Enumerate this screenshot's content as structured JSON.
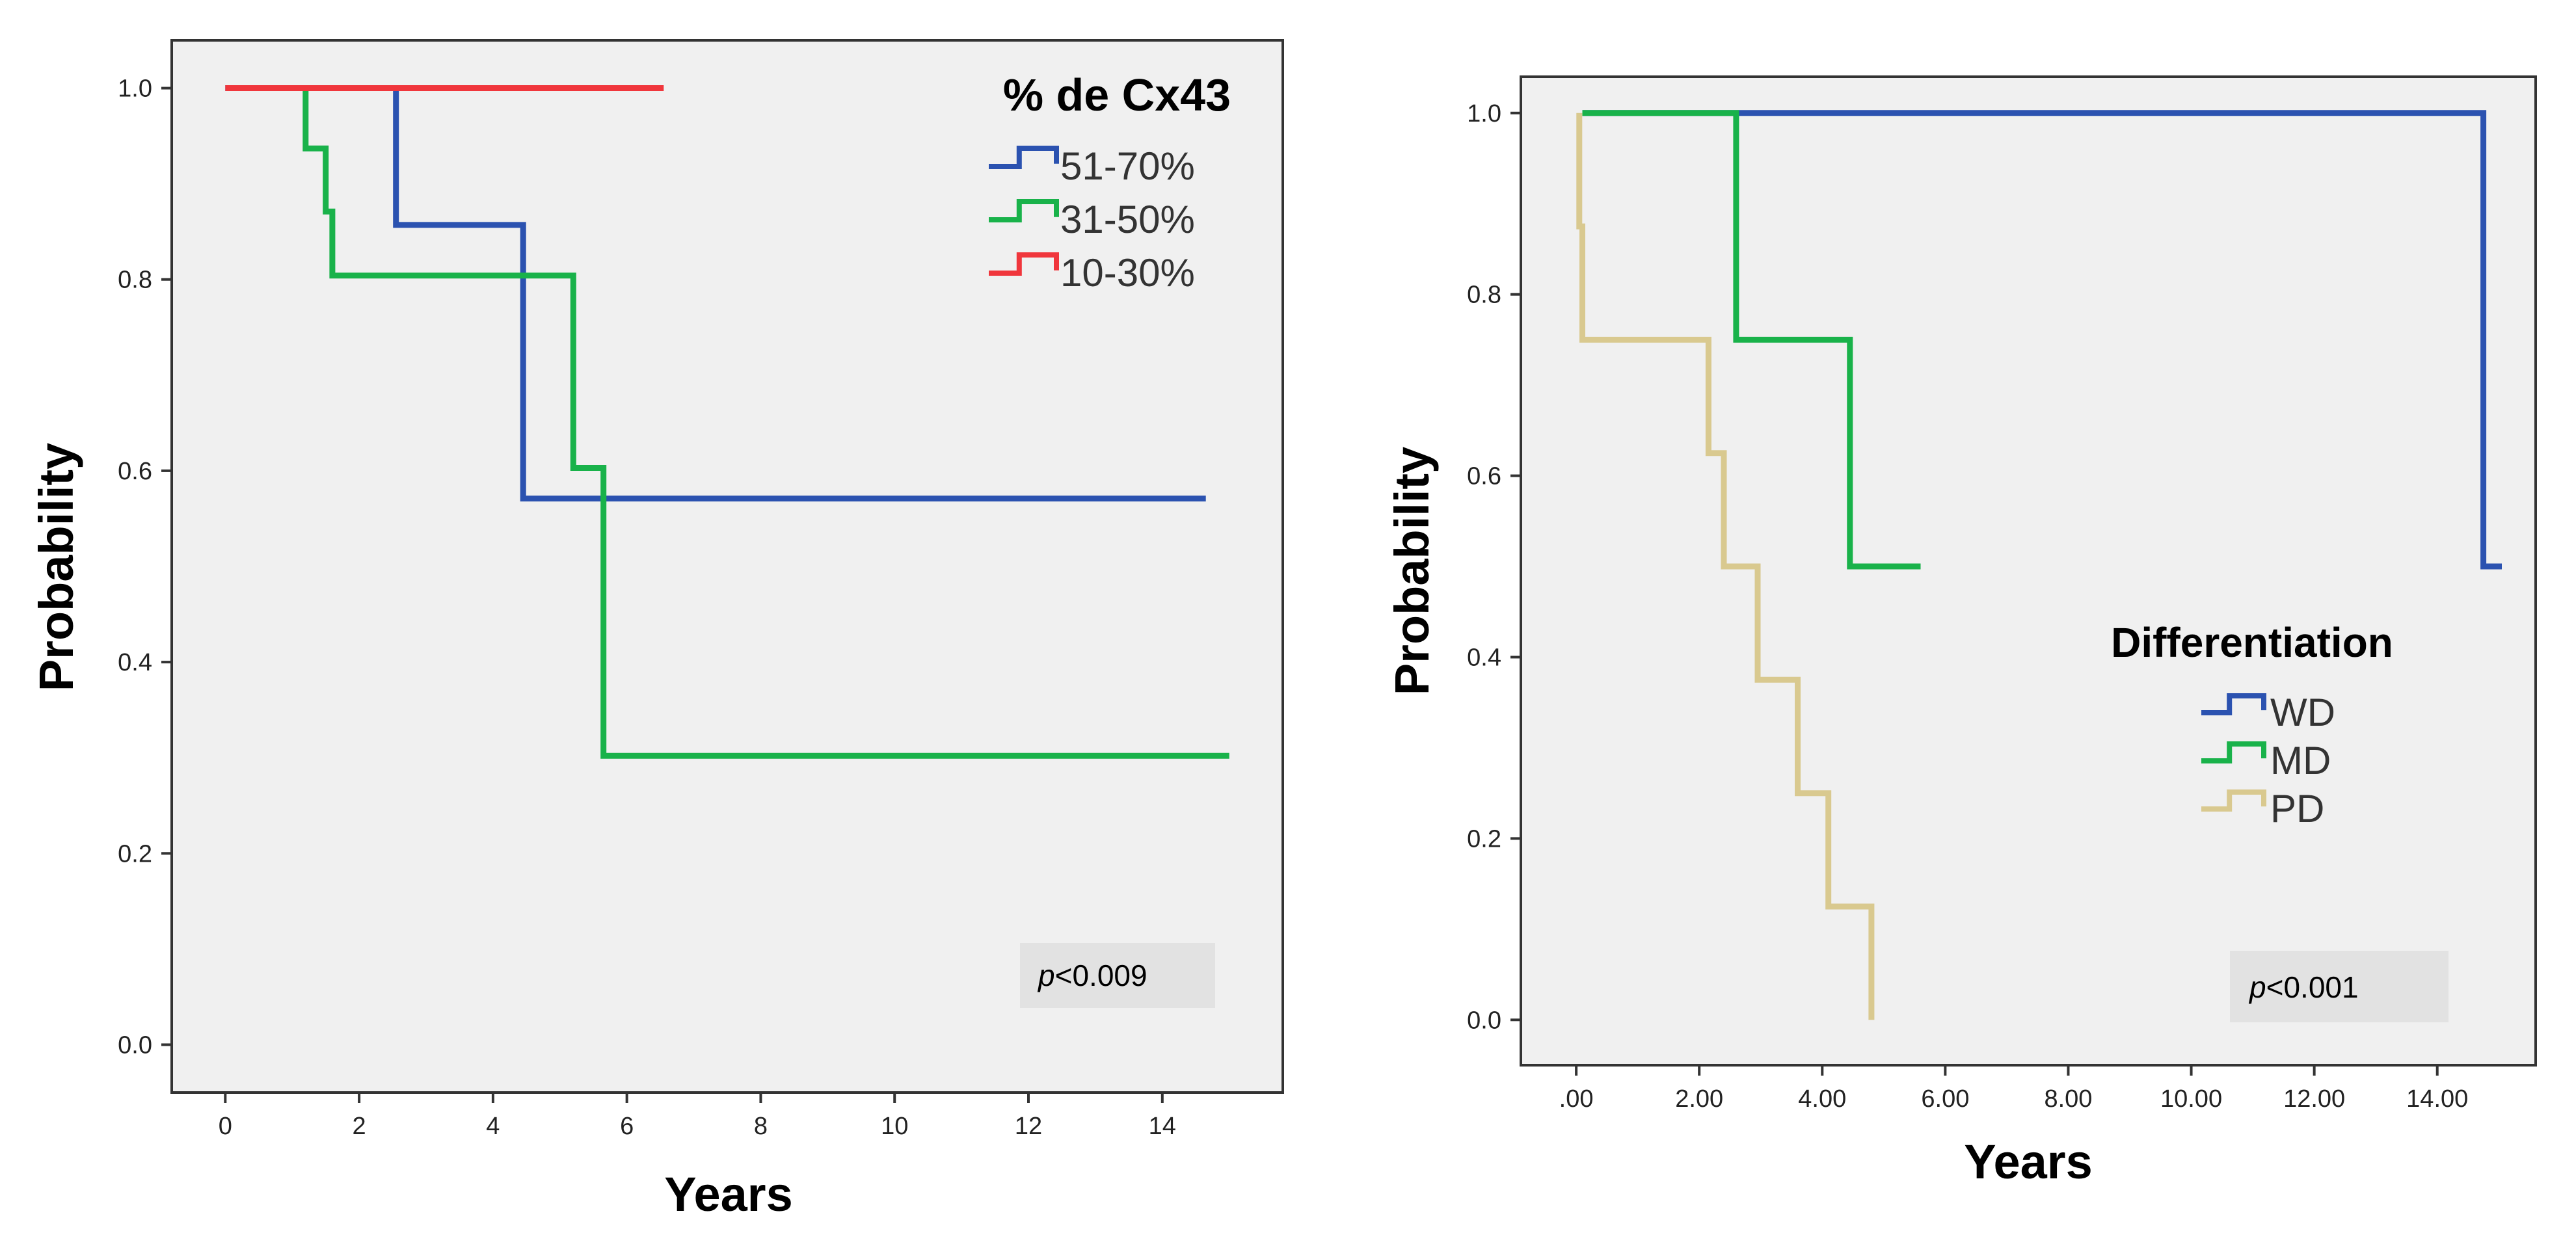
{
  "chart_data": [
    {
      "type": "line",
      "subtype": "kaplan-meier",
      "title": "",
      "xlabel": "Years",
      "ylabel": "Probability",
      "xlim": [
        -0.8,
        15.8
      ],
      "ylim": [
        -0.05,
        1.05
      ],
      "xticks": [
        0,
        2,
        4,
        6,
        8,
        10,
        12,
        14
      ],
      "xtick_labels": [
        "0",
        "2",
        "4",
        "6",
        "8",
        "10",
        "12",
        "14"
      ],
      "yticks": [
        0.0,
        0.2,
        0.4,
        0.6,
        0.8,
        1.0
      ],
      "ytick_labels": [
        "0.0",
        "0.2",
        "0.4",
        "0.6",
        "0.8",
        "1.0"
      ],
      "legend_title": "% de Cx43",
      "legend_position": "top-right",
      "annotation": {
        "italic": "p",
        "text": "<0.009"
      },
      "series": [
        {
          "name": "51-70%",
          "color": "#2b52b0",
          "steps": [
            [
              0,
              1.0
            ],
            [
              2.55,
              1.0
            ],
            [
              2.55,
              0.857
            ],
            [
              4.45,
              0.857
            ],
            [
              4.45,
              0.571
            ],
            [
              14.65,
              0.571
            ]
          ]
        },
        {
          "name": "31-50%",
          "color": "#19b24a",
          "steps": [
            [
              1.2,
              1.0
            ],
            [
              1.2,
              0.937
            ],
            [
              1.5,
              0.937
            ],
            [
              1.5,
              0.871
            ],
            [
              1.6,
              0.871
            ],
            [
              1.6,
              0.804
            ],
            [
              5.2,
              0.804
            ],
            [
              5.2,
              0.603
            ],
            [
              5.65,
              0.603
            ],
            [
              5.65,
              0.302
            ],
            [
              15.0,
              0.302
            ]
          ]
        },
        {
          "name": "10-30%",
          "color": "#f0363c",
          "steps": [
            [
              0,
              1.0
            ],
            [
              6.55,
              1.0
            ]
          ]
        }
      ]
    },
    {
      "type": "line",
      "subtype": "kaplan-meier",
      "title": "",
      "xlabel": "Years",
      "ylabel": "Probability",
      "xlim": [
        -0.9,
        15.6
      ],
      "ylim": [
        -0.05,
        1.04
      ],
      "xticks": [
        0,
        2,
        4,
        6,
        8,
        10,
        12,
        14
      ],
      "xtick_labels": [
        ".00",
        "2.00",
        "4.00",
        "6.00",
        "8.00",
        "10.00",
        "12.00",
        "14.00"
      ],
      "yticks": [
        0.0,
        0.2,
        0.4,
        0.6,
        0.8,
        1.0
      ],
      "ytick_labels": [
        "0.0",
        "0.2",
        "0.4",
        "0.6",
        "0.8",
        "1.0"
      ],
      "legend_title": "Differentiation",
      "legend_position": "center-right",
      "annotation": {
        "italic": "p",
        "text": "<0.001"
      },
      "series": [
        {
          "name": "WD",
          "color": "#2b52b0",
          "steps": [
            [
              0.1,
              1.0
            ],
            [
              14.75,
              1.0
            ],
            [
              14.75,
              0.5
            ],
            [
              15.05,
              0.5
            ]
          ]
        },
        {
          "name": "MD",
          "color": "#19b24a",
          "steps": [
            [
              0.1,
              1.0
            ],
            [
              2.6,
              1.0
            ],
            [
              2.6,
              0.75
            ],
            [
              4.45,
              0.75
            ],
            [
              4.45,
              0.5
            ],
            [
              5.6,
              0.5
            ]
          ]
        },
        {
          "name": "PD",
          "color": "#d9c98f",
          "steps": [
            [
              0.05,
              1.0
            ],
            [
              0.05,
              0.875
            ],
            [
              0.1,
              0.875
            ],
            [
              0.1,
              0.75
            ],
            [
              2.15,
              0.75
            ],
            [
              2.15,
              0.625
            ],
            [
              2.4,
              0.625
            ],
            [
              2.4,
              0.5
            ],
            [
              2.95,
              0.5
            ],
            [
              2.95,
              0.375
            ],
            [
              3.6,
              0.375
            ],
            [
              3.6,
              0.25
            ],
            [
              4.1,
              0.25
            ],
            [
              4.1,
              0.125
            ],
            [
              4.8,
              0.125
            ],
            [
              4.8,
              0.0
            ]
          ]
        }
      ]
    }
  ]
}
